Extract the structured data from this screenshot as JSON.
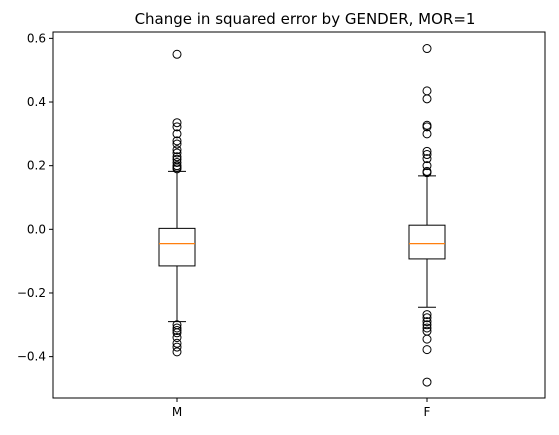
{
  "chart_data": {
    "type": "box",
    "title": "Change in squared error by GENDER, MOR=1",
    "xlabel": "",
    "ylabel": "",
    "categories": [
      "M",
      "F"
    ],
    "ylim": [
      -0.53,
      0.62
    ],
    "yticks": [
      -0.4,
      -0.2,
      0.0,
      0.2,
      0.4,
      0.6
    ],
    "ytick_labels": [
      "−0.4",
      "−0.2",
      "0.0",
      "0.2",
      "0.4",
      "0.6"
    ],
    "grid": false,
    "legend": "none",
    "colors": {
      "box": "#000000",
      "median": "#ff7f0e",
      "outlier": "#000000"
    },
    "boxes": [
      {
        "name": "M",
        "whisker_low": -0.29,
        "q1": -0.115,
        "median": -0.045,
        "q3": 0.003,
        "whisker_high": 0.182,
        "outliers": [
          0.55,
          0.335,
          0.322,
          0.3,
          0.278,
          0.268,
          0.25,
          0.24,
          0.228,
          0.22,
          0.21,
          0.2,
          0.195,
          0.19,
          -0.3,
          -0.31,
          -0.318,
          -0.325,
          -0.34,
          -0.358,
          -0.37,
          -0.385
        ]
      },
      {
        "name": "F",
        "whisker_low": -0.245,
        "q1": -0.093,
        "median": -0.045,
        "q3": 0.013,
        "whisker_high": 0.168,
        "outliers": [
          0.568,
          0.435,
          0.41,
          0.327,
          0.322,
          0.3,
          0.245,
          0.235,
          0.222,
          0.2,
          0.182,
          0.178,
          -0.268,
          -0.278,
          -0.29,
          -0.3,
          -0.31,
          -0.32,
          -0.345,
          -0.378,
          -0.48
        ]
      }
    ]
  }
}
